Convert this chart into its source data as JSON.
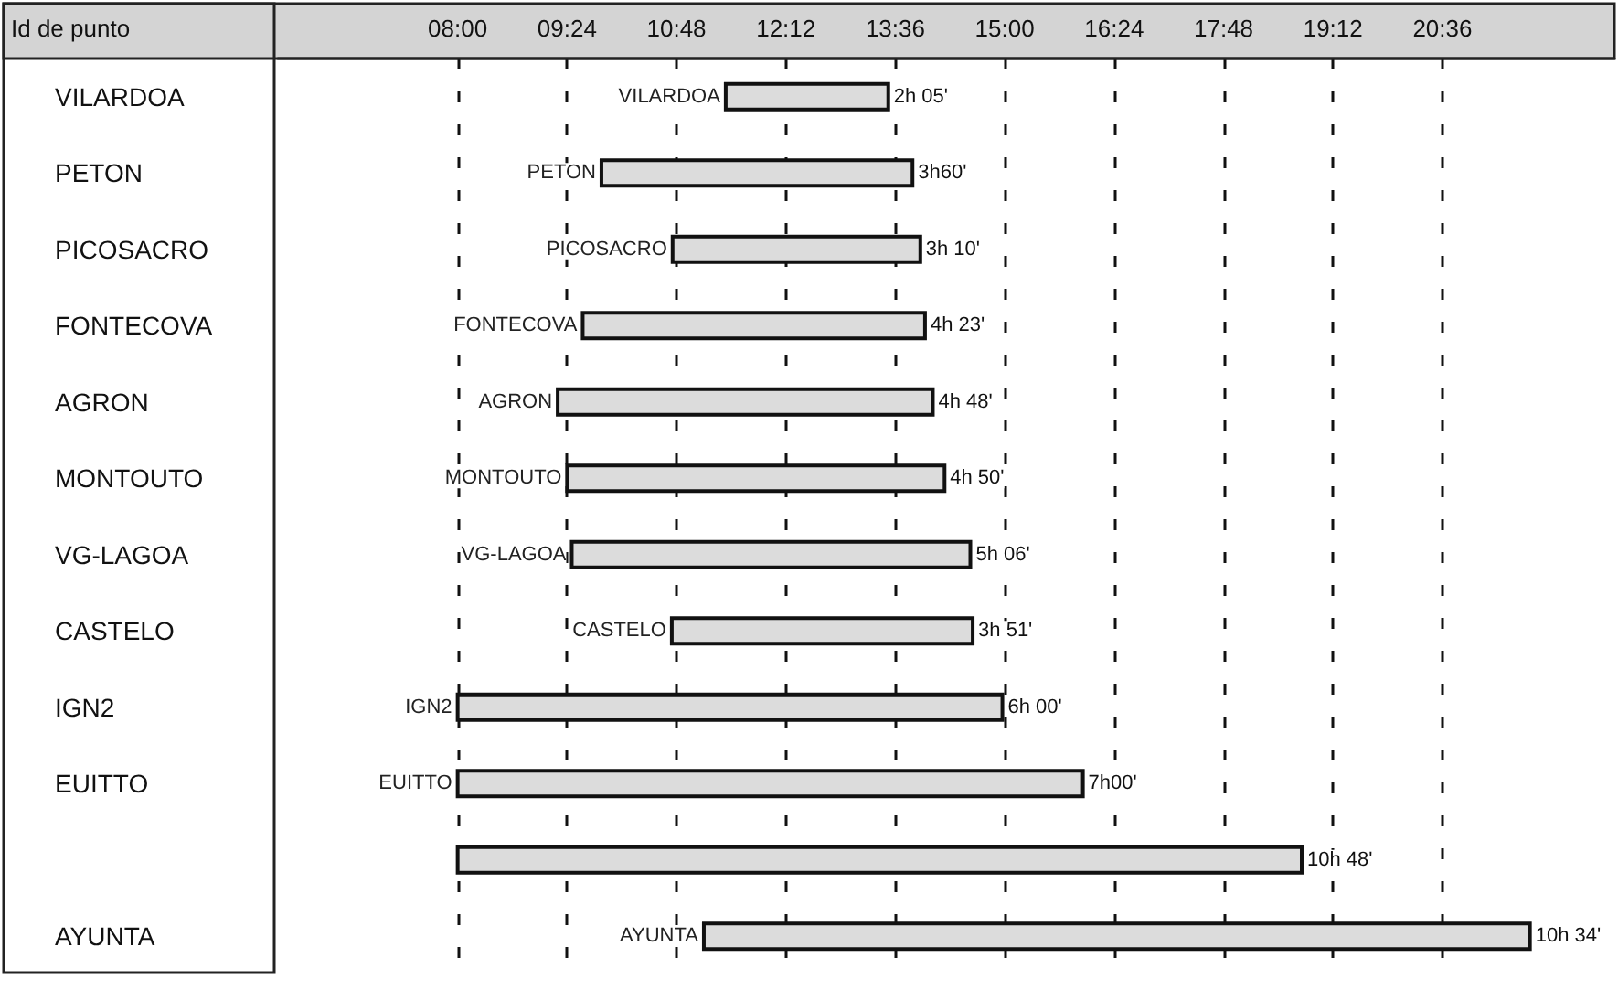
{
  "chart_data": {
    "type": "bar",
    "orientation": "horizontal",
    "ylabel": "Id de punto",
    "categories": [
      "VILARDOA",
      "PETON",
      "PICOSACRO",
      "FONTECOVA",
      "AGRON",
      "MONTOUTO",
      "VG-LAGOA",
      "CASTELO",
      "IGN2",
      "EUITTO",
      null,
      "AYUNTA"
    ],
    "base": [
      11.43,
      9.84,
      10.75,
      9.6,
      9.28,
      9.4,
      9.46,
      10.74,
      8.0,
      8.0,
      8.0,
      11.15
    ],
    "values": [
      2.08,
      3.98,
      3.17,
      4.38,
      4.8,
      4.83,
      5.1,
      3.85,
      6.97,
      8.0,
      10.8,
      10.57
    ],
    "annotations": [
      {
        "text": "2h 05'",
        "x": 13.51,
        "y": "VILARDOA"
      },
      {
        "text": "3h60'",
        "x": 13.82,
        "y": "PETON"
      },
      {
        "text": "3h 10'",
        "x": 13.92,
        "y": "PICOSACRO"
      },
      {
        "text": "4h 23'",
        "x": 13.98,
        "y": "FONTECOVA"
      },
      {
        "text": "4h 48'",
        "x": 14.08,
        "y": "AGRON"
      },
      {
        "text": "4h 50'",
        "x": 14.23,
        "y": "MONTOUTO"
      },
      {
        "text": "5h 06'",
        "x": 14.56,
        "y": "VG-LAGOA"
      },
      {
        "text": "3h 51'",
        "x": 14.59,
        "y": "CASTELO"
      },
      {
        "text": "6h 00'",
        "x": 14.97,
        "y": "IGN2"
      },
      {
        "text": "7h00'",
        "x": 16.0,
        "y": "EUITTO"
      },
      {
        "text": "10h 48'",
        "x": 18.8
      },
      {
        "text": "10h 34'",
        "x": 21.72,
        "y": "AYUNTA"
      }
    ],
    "color": "#dcdcdc",
    "xlim": [
      5.7,
      22.8
    ],
    "xticks": [
      {
        "value": 8.0,
        "label": "08:00"
      },
      {
        "value": 9.4,
        "label": "09:24"
      },
      {
        "value": 10.8,
        "label": "10:48"
      },
      {
        "value": 12.2,
        "label": "12:12"
      },
      {
        "value": 13.6,
        "label": "13:36"
      },
      {
        "value": 15.0,
        "label": "15:00"
      },
      {
        "value": 16.4,
        "label": "16:24"
      },
      {
        "value": 17.8,
        "label": "17:48"
      },
      {
        "value": 19.2,
        "label": "19:12"
      },
      {
        "value": 20.6,
        "label": "20:36"
      }
    ],
    "grid": "x"
  }
}
